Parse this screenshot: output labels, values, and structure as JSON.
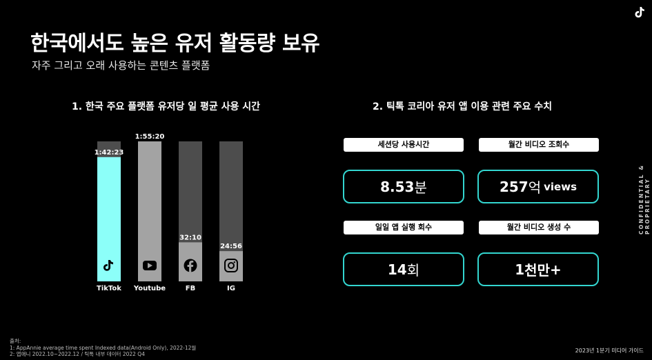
{
  "header": {
    "title": "한국에서도 높은 유저 활동량 보유",
    "subtitle": "자주 그리고 오래 사용하는 콘텐츠 플랫폼"
  },
  "side_label": "CONFIDENTIAL & PROPRIETARY",
  "section1": {
    "title": "1. 한국 주요 플랫폼 유저당 일 평균 사용 시간"
  },
  "section2": {
    "title": "2. 틱톡 코리아 유저 앱 이용 관련 주요 수치"
  },
  "chart_data": {
    "type": "bar",
    "categories": [
      "TikTok",
      "Youtube",
      "FB",
      "IG"
    ],
    "values_minutes": [
      102.38,
      115.33,
      32.17,
      24.93
    ],
    "value_labels": [
      "1:42:23",
      "1:55:20",
      "32:10",
      "24:56"
    ],
    "icons": [
      "tiktok-icon",
      "youtube-icon",
      "facebook-icon",
      "instagram-icon"
    ],
    "ylim": [
      0,
      115.33
    ],
    "colors": {
      "tiktok": "#8cfff9",
      "others": "#a3a3a3",
      "track": "#4d4d4d"
    }
  },
  "stats": [
    {
      "label": "세션당 사용시간",
      "value": "8.53",
      "unit": "분",
      "suffix": ""
    },
    {
      "label": "월간 비디오 조회수",
      "value": "257",
      "unit": "억",
      "suffix": "views"
    },
    {
      "label": "일일 앱 실행 회수",
      "value": "14",
      "unit": "회",
      "suffix": ""
    },
    {
      "label": "월간 비디오 생성 수",
      "value": "1",
      "unit": "천만",
      "suffix": "+"
    }
  ],
  "source": {
    "heading": "출처:",
    "lines": [
      "1: AppAnnie average time spent Indexed data(Android Only), 2022-12월",
      "2: 앱애니 2022.10~2022.12 / 틱톡 내부 데이터 2022 Q4"
    ]
  },
  "footer": "2023년 1분기 미디어 가이드",
  "accent_color": "#33d6d0"
}
